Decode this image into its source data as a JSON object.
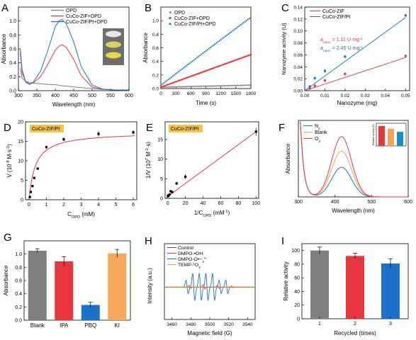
{
  "colors": {
    "gray": "#7f7f7f",
    "red": "#e8363f",
    "blue": "#1f6fc5",
    "orange": "#f6a356",
    "tan": "#f7c77f",
    "green": "#1a73c9"
  },
  "chart_data": [
    {
      "panel": "A",
      "type": "line",
      "xlabel": "Wavelength (nm)",
      "ylabel": "Absorbance",
      "xlim": [
        300,
        600
      ],
      "ylim": [
        0,
        1.2
      ],
      "xticks": [
        300,
        350,
        400,
        450,
        500,
        550,
        600
      ],
      "yticks": [
        0,
        0.2,
        0.4,
        0.6,
        0.8,
        1.0
      ],
      "yticklabels": [
        "0.0",
        "0.2",
        "0.4",
        "0.6",
        "0.8",
        "1.0"
      ],
      "series": [
        {
          "name": "OPD",
          "color": "#808080",
          "x": [
            305,
            310,
            320,
            340,
            360,
            380,
            400,
            420,
            440,
            460,
            480,
            500,
            520,
            540,
            560,
            580,
            600
          ],
          "y": [
            0.32,
            0.18,
            0.13,
            0.11,
            0.1,
            0.09,
            0.085,
            0.07,
            0.06,
            0.05,
            0.04,
            0.03,
            0.02,
            0.015,
            0.01,
            0.01,
            0.01
          ]
        },
        {
          "name": "CuCo-ZIF+OPD",
          "color": "#e8363f",
          "x": [
            305,
            310,
            320,
            330,
            340,
            360,
            380,
            400,
            410,
            418,
            430,
            450,
            470,
            500,
            530,
            560,
            600
          ],
          "y": [
            0.55,
            0.25,
            0.13,
            0.1,
            0.11,
            0.2,
            0.38,
            0.58,
            0.64,
            0.66,
            0.62,
            0.45,
            0.22,
            0.05,
            0.02,
            0.01,
            0.01
          ]
        },
        {
          "name": "CuCo-ZIF/Pt+OPD",
          "color": "#1f6fc5",
          "x": [
            305,
            310,
            320,
            330,
            340,
            360,
            380,
            400,
            410,
            418,
            430,
            450,
            470,
            500,
            530,
            560,
            600
          ],
          "y": [
            0.6,
            0.3,
            0.12,
            0.09,
            0.12,
            0.28,
            0.58,
            0.92,
            1.0,
            1.02,
            0.96,
            0.7,
            0.35,
            0.08,
            0.02,
            0.01,
            0.01
          ]
        }
      ]
    },
    {
      "panel": "B",
      "type": "scatter",
      "xlabel": "Time (s)",
      "ylabel": "Absorbance",
      "xlim": [
        0,
        1800
      ],
      "ylim": [
        0,
        1.2
      ],
      "xticks": [
        0,
        300,
        600,
        900,
        1200,
        1500,
        1800
      ],
      "yticks": [
        0,
        0.2,
        0.4,
        0.6,
        0.8,
        1.0
      ],
      "yticklabels": [
        "0.0",
        "0.2",
        "0.4",
        "0.6",
        "0.8",
        "1.0"
      ],
      "series": [
        {
          "name": "OPD",
          "color": "#808080",
          "marker": "triangle-left",
          "x0": 0,
          "x1": 1800,
          "y0": 0.02,
          "y1": 0.05
        },
        {
          "name": "CuCo-ZIF+OPD",
          "color": "#e8363f",
          "marker": "square",
          "x0": 0,
          "x1": 1800,
          "y0": 0.02,
          "y1": 0.5
        },
        {
          "name": "CuCo-ZIF/Pt+OPD",
          "color": "#1f6fc5",
          "marker": "triangle-up",
          "x0": 0,
          "x1": 1800,
          "y0": 0.05,
          "y1": 1.05
        }
      ]
    },
    {
      "panel": "C",
      "type": "scatter",
      "xlabel": "Nanozyme (mg)",
      "ylabel": "Nanozyme activity (U)",
      "xlim": [
        0,
        0.052
      ],
      "ylim": [
        0,
        0.14
      ],
      "xticks": [
        0,
        0.01,
        0.02,
        0.03,
        0.04,
        0.05
      ],
      "yticks": [
        0,
        0.02,
        0.04,
        0.06,
        0.08,
        0.1,
        0.12,
        0.14
      ],
      "xticklabels": [
        "0.00",
        "0.01",
        "0.02",
        "0.03",
        "0.04",
        "0.05"
      ],
      "yticklabels": [
        "0.00",
        "0.02",
        "0.04",
        "0.06",
        "0.08",
        "0.10",
        "0.12",
        "0.14"
      ],
      "annotations": [
        {
          "text": "a",
          "sub": "nano",
          "rest": " = 1.11 U·mg",
          "sup": "-1",
          "color": "#e8363f"
        },
        {
          "text": "a",
          "sub": "nano",
          "rest": " = 2.45 U·mg",
          "sup": "-1",
          "color": "#1f6fc5"
        }
      ],
      "series": [
        {
          "name": "CuCo-ZIF",
          "color": "#e8363f",
          "x": [
            0.0025,
            0.005,
            0.01,
            0.02,
            0.05
          ],
          "y": [
            0.004,
            0.008,
            0.017,
            0.028,
            0.058
          ],
          "fit": [
            0,
            0.0,
            0.05,
            0.0555
          ]
        },
        {
          "name": "CuCo-ZIF/Pt",
          "color": "#1f6fc5",
          "x": [
            0.0025,
            0.005,
            0.01,
            0.02,
            0.05
          ],
          "y": [
            0.007,
            0.021,
            0.033,
            0.057,
            0.126
          ],
          "fit": [
            0,
            0.0,
            0.05,
            0.1225
          ]
        }
      ]
    },
    {
      "panel": "D",
      "type": "scatter",
      "label": "CuCo-ZIF/Pt",
      "xlabel": "C",
      "xlabel_sub": "OPD",
      "xlabel_rest": " (mM)",
      "ylabel": "V (10",
      "ylabel_sup": "-8",
      "ylabel_rest": " M·s",
      "ylabel_sup2": "-1",
      "ylabel_end": ")",
      "xlim": [
        -0.2,
        6.2
      ],
      "ylim": [
        0,
        20
      ],
      "xticks": [
        0,
        1,
        2,
        3,
        4,
        5,
        6
      ],
      "yticks": [
        0,
        5,
        10,
        15,
        20
      ],
      "x": [
        0.05,
        0.1,
        0.2,
        0.3,
        0.5,
        1,
        2,
        4,
        6
      ],
      "y": [
        0.7,
        2.0,
        3.5,
        5.6,
        8.0,
        13.5,
        15.5,
        16.9,
        17.3
      ],
      "err": [
        0.2,
        0.2,
        0.2,
        0.2,
        0.2,
        0.4,
        0.5,
        0.7,
        0.5
      ],
      "vmax": 17.4,
      "km": 0.37
    },
    {
      "panel": "E",
      "type": "scatter",
      "label": "CuCo-ZIF/Pt",
      "xlabel": "1/C",
      "xlabel_sub": "OPD",
      "xlabel_rest": " (mM",
      "xlabel_sup": "-1",
      "xlabel_end": ")",
      "ylabel": "1/V (10",
      "ylabel_sup": "7",
      "ylabel_rest": " M",
      "ylabel_sup2": "-1",
      "ylabel_end": "·s)",
      "xlim": [
        -3,
        103
      ],
      "ylim": [
        0,
        19.5
      ],
      "xticks": [
        0,
        20,
        40,
        60,
        80,
        100
      ],
      "yticks": [
        0,
        5,
        10,
        15
      ],
      "x": [
        0.17,
        0.25,
        0.5,
        1,
        2,
        3.3,
        5,
        10,
        20,
        100
      ],
      "y": [
        0.6,
        0.6,
        0.65,
        0.75,
        1.0,
        1.8,
        1.6,
        3.8,
        5.5,
        17.0
      ],
      "err": [
        0.1,
        0.1,
        0.1,
        0.1,
        0.15,
        0.2,
        0.3,
        0.4,
        0.6,
        1.0
      ],
      "fit": [
        0.5,
        0.165
      ]
    },
    {
      "panel": "F",
      "type": "line",
      "xlabel": "Wavelength (nm)",
      "ylabel": "Absorbance",
      "xlim": [
        300,
        600
      ],
      "ylim": [
        0,
        1
      ],
      "xticks": [
        300,
        400,
        500,
        600
      ],
      "series": [
        {
          "name": "N",
          "sub": "2",
          "color": "#1f6fc5",
          "peak": 0.68
        },
        {
          "name": "Blank",
          "sub": "",
          "color": "#f6a356",
          "peak": 1.05
        },
        {
          "name": "O",
          "sub": "2",
          "color": "#e8363f",
          "peak": 1.38
        }
      ],
      "inset": {
        "ylabel": "Relative activity (%)",
        "ylim": [
          0,
          100
        ],
        "values": [
          100,
          87,
          71
        ],
        "colors": [
          "#e8363f",
          "#f6a356",
          "#1a8fc4"
        ]
      }
    },
    {
      "panel": "G",
      "type": "bar",
      "ylabel": "Absorbance",
      "ylim": [
        0,
        1.2
      ],
      "yticks": [
        0,
        0.2,
        0.4,
        0.6,
        0.8,
        1.0
      ],
      "yticklabels": [
        "0.0",
        "0.2",
        "0.4",
        "0.6",
        "0.8",
        "1.0"
      ],
      "categories": [
        "Blank",
        "IPA",
        "PBQ",
        "KI"
      ],
      "values": [
        1.05,
        0.89,
        0.23,
        1.01
      ],
      "err": [
        0.03,
        0.07,
        0.04,
        0.06
      ],
      "colors": [
        "#808080",
        "#e8363f",
        "#1a73c9",
        "#f7a85a"
      ]
    },
    {
      "panel": "H",
      "type": "line",
      "xlabel": "Magnetic field (G)",
      "ylabel": "Intensity (a.u.)",
      "xlim": [
        3452,
        3548
      ],
      "xticks": [
        3460,
        3480,
        3500,
        3520,
        3540
      ],
      "series": [
        {
          "name": "Control",
          "color": "#555555"
        },
        {
          "name": "DMPO-•OH",
          "color": "#e8363f"
        },
        {
          "name": "DMPO-O",
          "sub": "2",
          "sup": "•−",
          "color": "#1f6fc5"
        },
        {
          "name": "TEMP-",
          "sup": "1",
          "name2": "O",
          "sub2": "2",
          "color": "#f6a356"
        }
      ]
    },
    {
      "panel": "I",
      "type": "bar",
      "xlabel": "Recycled (times)",
      "ylabel": "Relative activity",
      "ylim": [
        0,
        110
      ],
      "yticks": [
        0,
        20,
        40,
        60,
        80,
        100
      ],
      "categories": [
        "1",
        "2",
        "3"
      ],
      "values": [
        100,
        92,
        81
      ],
      "err": [
        5,
        4,
        7
      ],
      "colors": [
        "#808080",
        "#e8363f",
        "#1a73c9"
      ]
    }
  ]
}
